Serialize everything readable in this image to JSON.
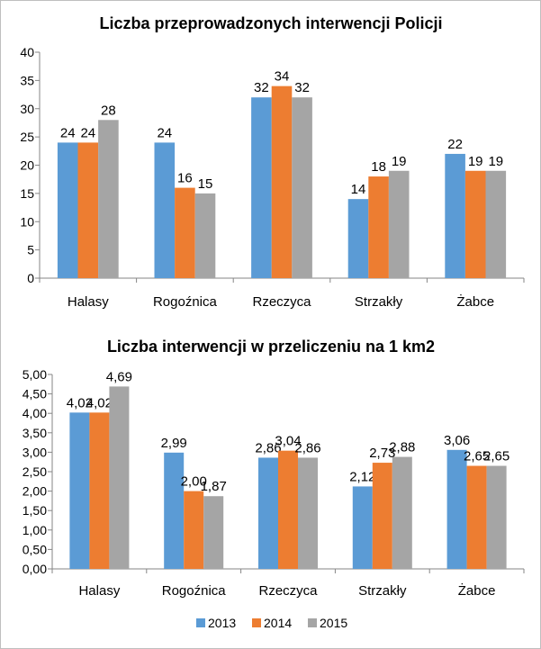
{
  "chart_data": [
    {
      "type": "bar",
      "title": "Liczba przeprowadzonych interwencji Policji",
      "xlabel": "",
      "ylabel": "",
      "categories": [
        "Halasy",
        "Rogoźnica",
        "Rzeczyca",
        "Strzakły",
        "Żabce"
      ],
      "ylim": [
        0,
        40
      ],
      "yticks": [
        "0",
        "5",
        "10",
        "15",
        "20",
        "25",
        "30",
        "35",
        "40"
      ],
      "grid": false,
      "series": [
        {
          "name": "2013",
          "values": [
            24,
            24,
            32,
            14,
            22
          ],
          "labels": [
            "24",
            "24",
            "32",
            "14",
            "22"
          ]
        },
        {
          "name": "2014",
          "values": [
            24,
            16,
            34,
            18,
            19
          ],
          "labels": [
            "24",
            "16",
            "34",
            "18",
            "19"
          ]
        },
        {
          "name": "2015",
          "values": [
            28,
            15,
            32,
            19,
            19
          ],
          "labels": [
            "28",
            "15",
            "32",
            "19",
            "19"
          ]
        }
      ]
    },
    {
      "type": "bar",
      "title": "Liczba interwencji w przeliczeniu na 1 km2",
      "xlabel": "",
      "ylabel": "",
      "categories": [
        "Halasy",
        "Rogoźnica",
        "Rzeczyca",
        "Strzakły",
        "Żabce"
      ],
      "ylim": [
        0,
        5
      ],
      "yticks": [
        "0,00",
        "0,50",
        "1,00",
        "1,50",
        "2,00",
        "2,50",
        "3,00",
        "3,50",
        "4,00",
        "4,50",
        "5,00"
      ],
      "grid": false,
      "series": [
        {
          "name": "2013",
          "values": [
            4.02,
            2.99,
            2.86,
            2.12,
            3.06
          ],
          "labels": [
            "4,02",
            "2,99",
            "2,86",
            "2,12",
            "3,06"
          ]
        },
        {
          "name": "2014",
          "values": [
            4.02,
            2.0,
            3.04,
            2.73,
            2.65
          ],
          "labels": [
            "4,02",
            "2,00",
            "3,04",
            "2,73",
            "2,65"
          ]
        },
        {
          "name": "2015",
          "values": [
            4.69,
            1.87,
            2.86,
            2.88,
            2.65
          ],
          "labels": [
            "4,69",
            "1,87",
            "2,86",
            "2,88",
            "2,65"
          ]
        }
      ]
    }
  ],
  "legend": {
    "position": "bottom",
    "items": [
      {
        "label": "2013",
        "color": "#5B9BD5"
      },
      {
        "label": "2014",
        "color": "#ED7D31"
      },
      {
        "label": "2015",
        "color": "#A5A5A5"
      }
    ]
  },
  "colors": {
    "series": [
      "#5B9BD5",
      "#ED7D31",
      "#A5A5A5"
    ],
    "axis": "#868686",
    "border": "#bfbfbf"
  }
}
